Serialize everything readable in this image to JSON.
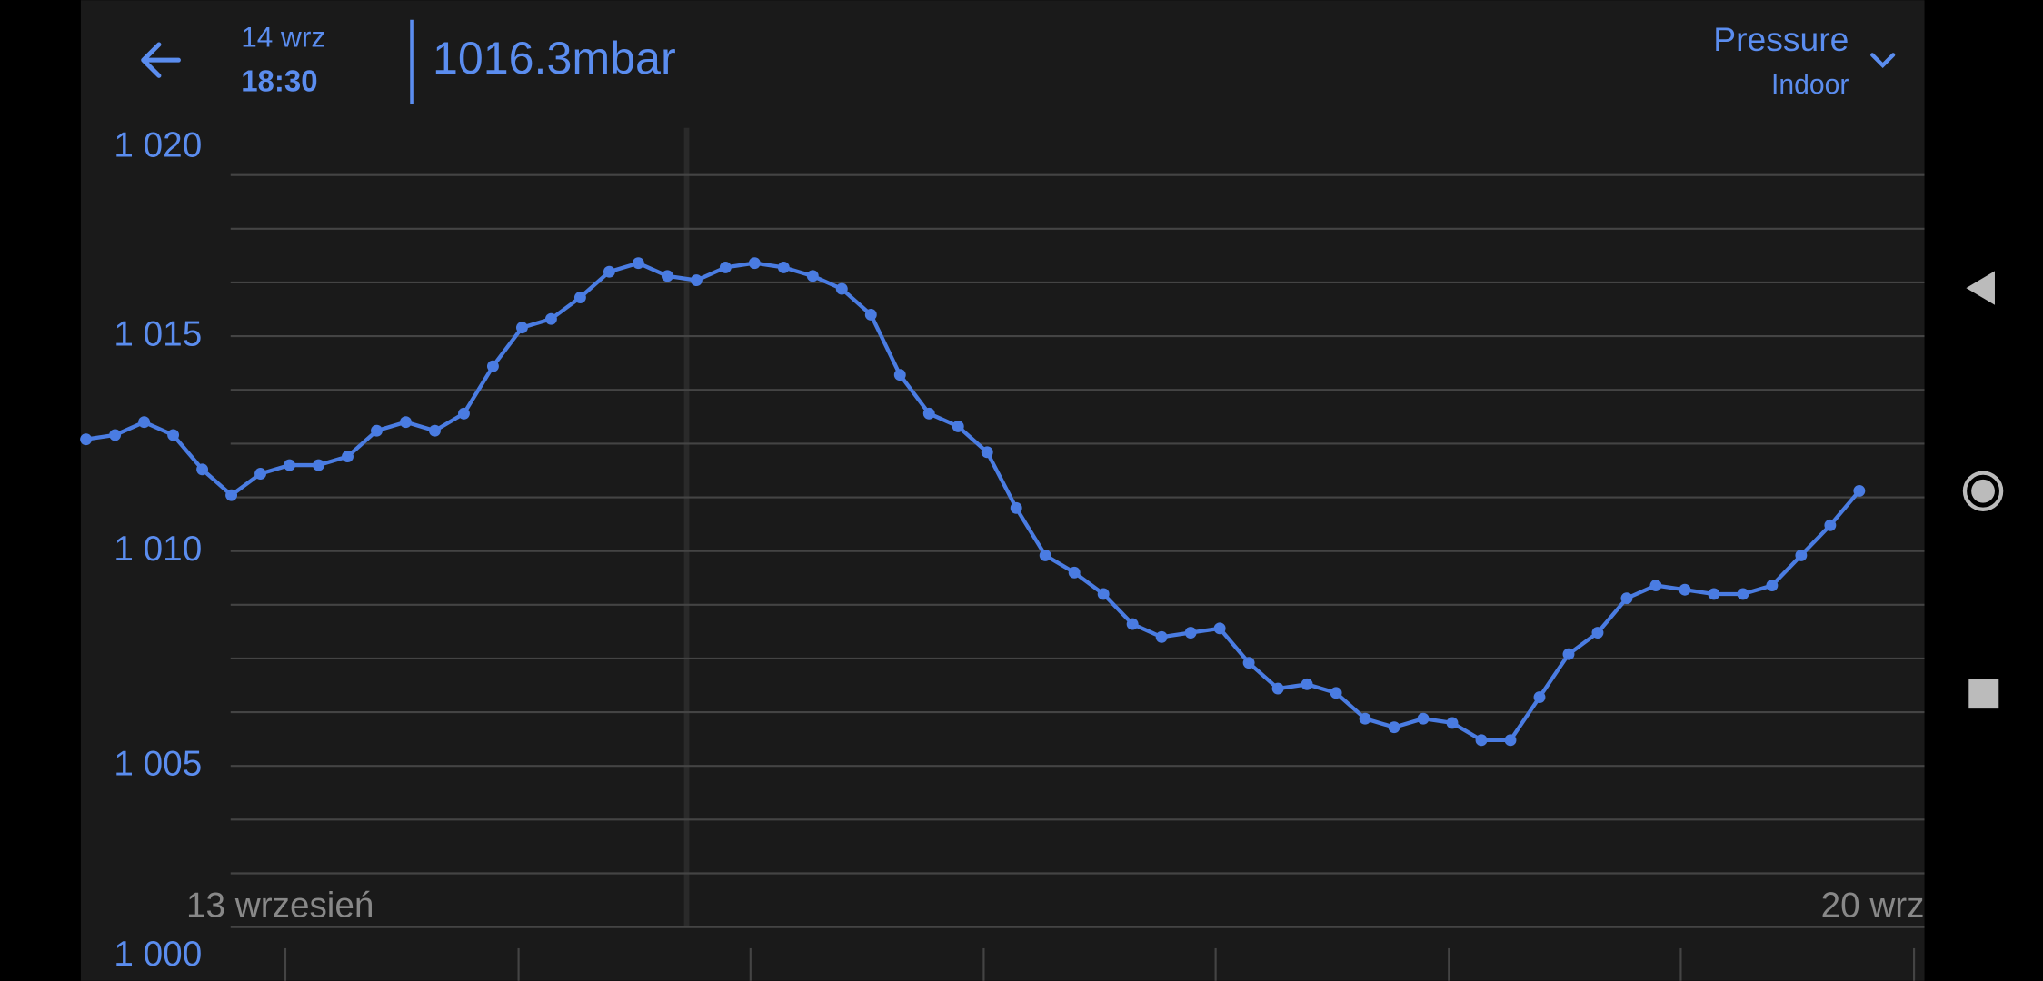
{
  "header": {
    "date": "14 wrz",
    "time": "18:30",
    "reading": "1016.3mbar",
    "metric": "Pressure",
    "location": "Indoor"
  },
  "chart_data": {
    "type": "line",
    "color": "#4a7ce2",
    "ylim": [
      1000,
      1020
    ],
    "yticks": [
      {
        "value": 1000,
        "label": "1 000"
      },
      {
        "value": 1005,
        "label": "1 005"
      },
      {
        "value": 1010,
        "label": "1 010"
      },
      {
        "value": 1015,
        "label": "1 015"
      },
      {
        "value": 1020,
        "label": "1 020"
      }
    ],
    "ygrid": [
      1001.25,
      1002.5,
      1003.75,
      1005,
      1006.25,
      1007.5,
      1008.75,
      1010,
      1011.25,
      1012.5,
      1013.75,
      1015,
      1016.25,
      1017.5,
      1018.75
    ],
    "xlabels": [
      "13 wrzesień",
      "20 wrz"
    ],
    "series": [
      {
        "color": "#4a7ce2",
        "values": [
          1012.6,
          1012.7,
          1013.0,
          1012.7,
          1011.9,
          1011.3,
          1011.8,
          1012.0,
          1012.0,
          1012.2,
          1012.8,
          1013.0,
          1012.8,
          1013.2,
          1014.3,
          1015.2,
          1015.4,
          1015.9,
          1016.5,
          1016.7,
          1016.4,
          1016.3,
          1016.6,
          1016.7,
          1016.6,
          1016.4,
          1016.1,
          1015.5,
          1014.1,
          1013.2,
          1012.9,
          1012.3,
          1011.0,
          1009.9,
          1009.5,
          1009.0,
          1008.3,
          1008.0,
          1008.1,
          1008.2,
          1007.4,
          1006.8,
          1006.9,
          1006.7,
          1006.1,
          1005.9,
          1006.1,
          1006.0,
          1005.6,
          1005.6,
          1006.6,
          1007.6,
          1008.1,
          1008.9,
          1009.2,
          1009.1,
          1009.0,
          1009.0,
          1009.2,
          1009.9,
          1010.6,
          1011.4
        ]
      }
    ]
  }
}
